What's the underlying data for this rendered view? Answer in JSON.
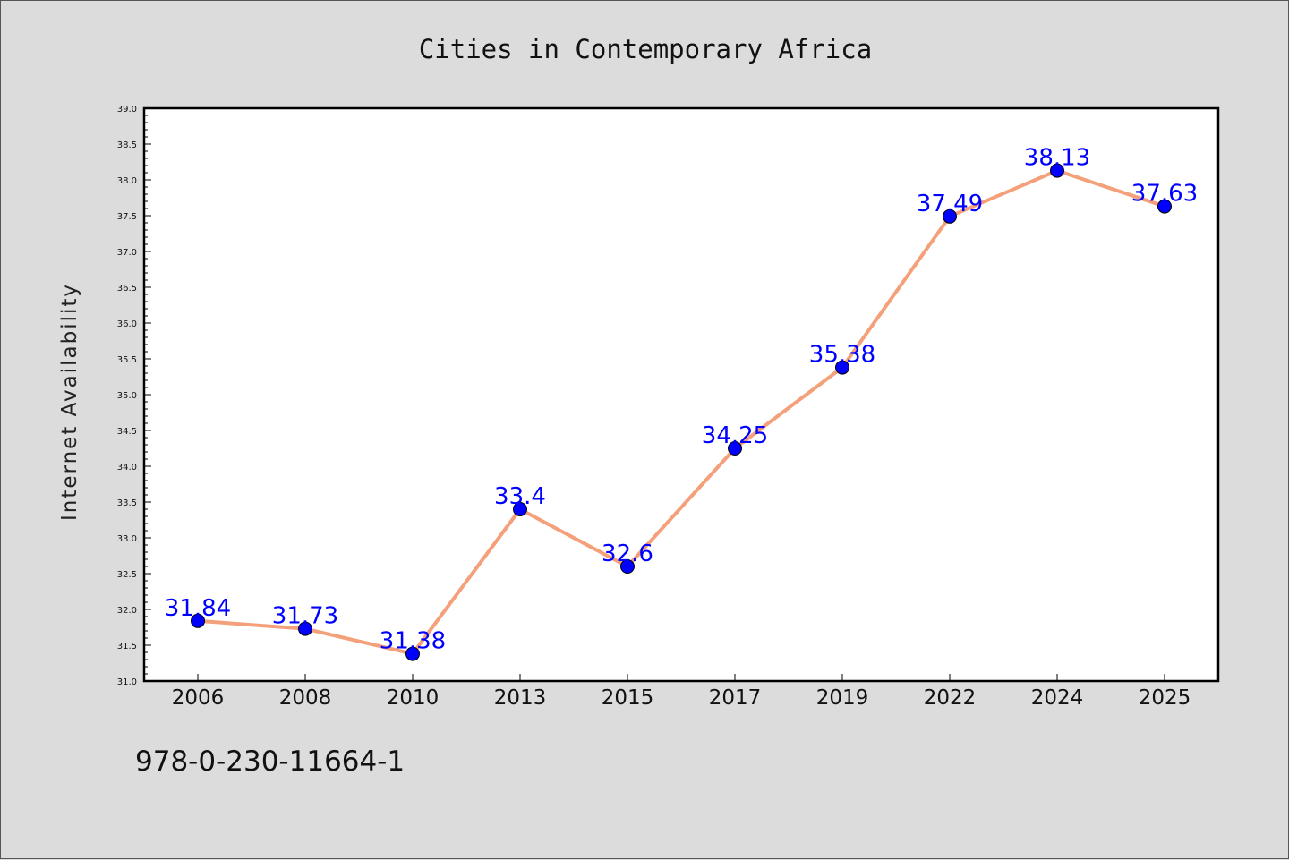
{
  "chart_data": {
    "type": "line",
    "title": "Cities in Contemporary Africa",
    "xlabel": "",
    "ylabel": "Internet Availability",
    "categories": [
      "2006",
      "2008",
      "2010",
      "2013",
      "2015",
      "2017",
      "2019",
      "2022",
      "2024",
      "2025"
    ],
    "values": [
      31.84,
      31.73,
      31.38,
      33.4,
      32.6,
      34.25,
      35.38,
      37.49,
      38.13,
      37.63
    ],
    "data_labels": [
      "31.84",
      "31.73",
      "31.38",
      "33.4",
      "32.6",
      "34.25",
      "35.38",
      "37.49",
      "38.13",
      "37.63"
    ],
    "ylim": [
      31.0,
      39.0
    ],
    "yticks": [
      "31.0",
      "31.5",
      "32.0",
      "32.5",
      "33.0",
      "33.5",
      "34.0",
      "34.5",
      "35.0",
      "35.5",
      "36.0",
      "36.5",
      "37.0",
      "37.5",
      "38.0",
      "38.5",
      "39.0"
    ],
    "grid": false,
    "legend": "none",
    "colors": {
      "line": "#f4a07a",
      "marker": "#0000ff",
      "label": "#0000ff",
      "background": "#dcdcdc",
      "plot_area": "#ffffff"
    }
  },
  "footnote": "978-0-230-11664-1"
}
